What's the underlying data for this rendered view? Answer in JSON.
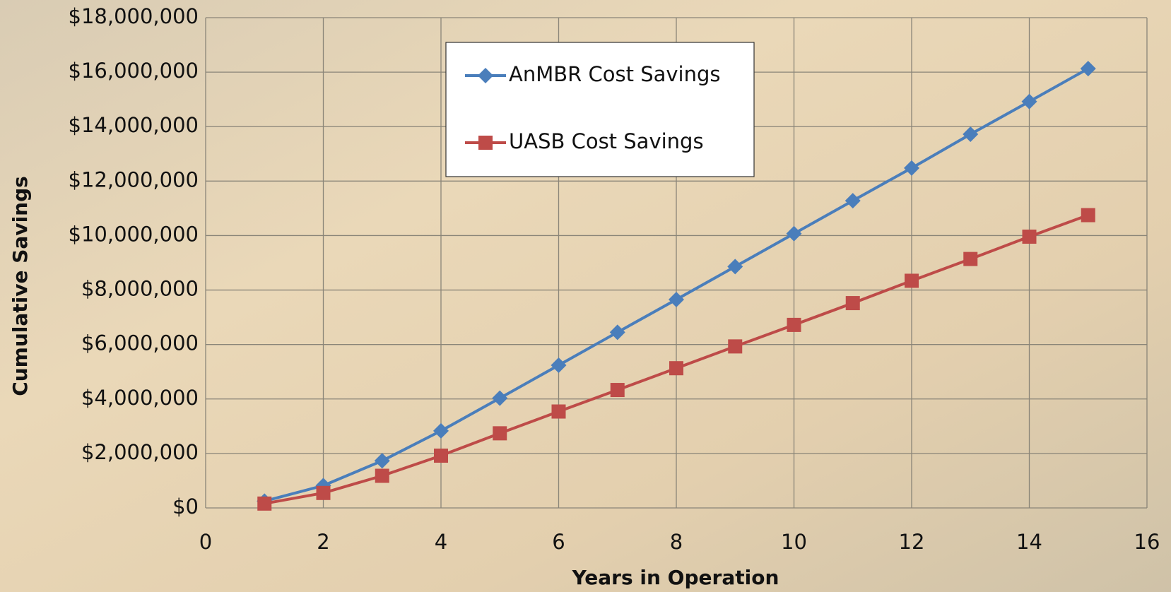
{
  "chart_data": {
    "type": "line",
    "x_label": "Years in Operation",
    "y_label": "Cumulative Savings",
    "x": [
      1,
      2,
      3,
      4,
      5,
      6,
      7,
      8,
      9,
      10,
      11,
      12,
      13,
      14,
      15
    ],
    "series": [
      {
        "name": "AnMBR Cost Savings",
        "color": "#4a7ebb",
        "marker": "diamond",
        "values": [
          250000,
          820000,
          1730000,
          2830000,
          4030000,
          5240000,
          6450000,
          7650000,
          8860000,
          10070000,
          11280000,
          12480000,
          13720000,
          14920000,
          16130000
        ]
      },
      {
        "name": "UASB Cost Savings",
        "color": "#be4b48",
        "marker": "square",
        "values": [
          160000,
          550000,
          1180000,
          1920000,
          2740000,
          3540000,
          4330000,
          5130000,
          5930000,
          6720000,
          7520000,
          8340000,
          9140000,
          9960000,
          10750000
        ]
      }
    ],
    "xlim": [
      0,
      16
    ],
    "xticks": [
      0,
      2,
      4,
      6,
      8,
      10,
      12,
      14,
      16
    ],
    "ylim": [
      0,
      18000000
    ],
    "yticks": [
      {
        "value": 0,
        "label": "$0"
      },
      {
        "value": 2000000,
        "label": "$2,000,000"
      },
      {
        "value": 4000000,
        "label": "$4,000,000"
      },
      {
        "value": 6000000,
        "label": "$6,000,000"
      },
      {
        "value": 8000000,
        "label": "$8,000,000"
      },
      {
        "value": 10000000,
        "label": "$10,000,000"
      },
      {
        "value": 12000000,
        "label": "$12,000,000"
      },
      {
        "value": 14000000,
        "label": "$14,000,000"
      },
      {
        "value": 16000000,
        "label": "$16,000,000"
      },
      {
        "value": 18000000,
        "label": "$18,000,000"
      }
    ],
    "grid": true,
    "legend": "top-center"
  }
}
